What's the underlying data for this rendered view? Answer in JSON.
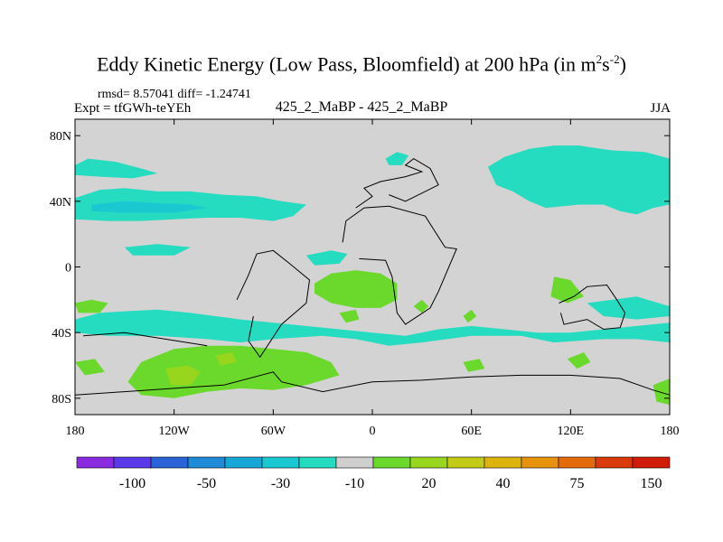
{
  "title": {
    "main": "Eddy Kinetic Energy (Low Pass, Bloomfield) at 200 hPa (in m",
    "sup1": "2",
    "mid": "s",
    "sup2": "-2",
    "end": ")"
  },
  "stats": "rmsd= 8.57041 diff= -1.24741",
  "expt": "Expt = tfGWh-teYEh",
  "center_label": "425_2_MaBP - 425_2_MaBP",
  "season": "JJA",
  "colors": {
    "background": "#d3d3d3",
    "coastline": "#000000",
    "palette": [
      "#8a2be2",
      "#5a3ae8",
      "#2a62d8",
      "#1e8ad8",
      "#18a8d8",
      "#1ac8d2",
      "#25dcc0",
      "#cfcfcf",
      "#6ad92c",
      "#98d61e",
      "#c2cc14",
      "#dcb40c",
      "#e6920a",
      "#e46a0a",
      "#d83a0a",
      "#d01a0a"
    ]
  },
  "chart_data": {
    "type": "heatmap",
    "title": "Eddy Kinetic Energy (Low Pass, Bloomfield) at 200 hPa (in m^2 s^-2)",
    "subtitle": "425_2_MaBP - 425_2_MaBP",
    "xlabel": "",
    "ylabel": "",
    "xlim": [
      -180,
      180
    ],
    "ylim": [
      -90,
      90
    ],
    "x_ticks": [
      {
        "value": -180,
        "label": "180"
      },
      {
        "value": -120,
        "label": "120W"
      },
      {
        "value": -60,
        "label": "60W"
      },
      {
        "value": 0,
        "label": "0"
      },
      {
        "value": 60,
        "label": "60E"
      },
      {
        "value": 120,
        "label": "120E"
      },
      {
        "value": 180,
        "label": "180"
      }
    ],
    "y_ticks": [
      {
        "value": 80,
        "label": "80N"
      },
      {
        "value": 40,
        "label": "40N"
      },
      {
        "value": 0,
        "label": "0"
      },
      {
        "value": -40,
        "label": "40S"
      },
      {
        "value": -80,
        "label": "80S"
      }
    ],
    "colorbar": {
      "levels": [
        -100,
        -50,
        -30,
        -10,
        20,
        40,
        75,
        150
      ],
      "labels": [
        "-100",
        "-50",
        "-30",
        "-10",
        "20",
        "40",
        "75",
        "150"
      ],
      "n_boxes": 16
    },
    "regions": [
      {
        "name": "nh-west-cyan-band",
        "class": "-10",
        "poly": [
          [
            -180,
            42
          ],
          [
            -165,
            47
          ],
          [
            -150,
            48
          ],
          [
            -130,
            46
          ],
          [
            -110,
            46
          ],
          [
            -90,
            44
          ],
          [
            -70,
            43
          ],
          [
            -55,
            40
          ],
          [
            -40,
            38
          ],
          [
            -48,
            31
          ],
          [
            -60,
            28
          ],
          [
            -80,
            30
          ],
          [
            -100,
            30
          ],
          [
            -120,
            29
          ],
          [
            -140,
            28
          ],
          [
            -160,
            28
          ],
          [
            -180,
            29
          ]
        ]
      },
      {
        "name": "nh-west-cyan-upper",
        "class": "-10",
        "poly": [
          [
            -180,
            62
          ],
          [
            -172,
            66
          ],
          [
            -155,
            64
          ],
          [
            -140,
            60
          ],
          [
            -130,
            57
          ],
          [
            -145,
            54
          ],
          [
            -165,
            55
          ],
          [
            -180,
            56
          ]
        ]
      },
      {
        "name": "nh-west-blue-core",
        "class": "-30",
        "poly": [
          [
            -170,
            38
          ],
          [
            -150,
            40
          ],
          [
            -130,
            39
          ],
          [
            -110,
            38
          ],
          [
            -100,
            36
          ],
          [
            -120,
            33
          ],
          [
            -150,
            33
          ],
          [
            -170,
            34
          ]
        ]
      },
      {
        "name": "nh-east-cyan",
        "class": "-10",
        "poly": [
          [
            70,
            61
          ],
          [
            80,
            67
          ],
          [
            95,
            72
          ],
          [
            110,
            74
          ],
          [
            125,
            74
          ],
          [
            145,
            71
          ],
          [
            165,
            70
          ],
          [
            180,
            66
          ],
          [
            180,
            38
          ],
          [
            170,
            36
          ],
          [
            160,
            32
          ],
          [
            150,
            34
          ],
          [
            140,
            38
          ],
          [
            125,
            38
          ],
          [
            105,
            36
          ],
          [
            95,
            40
          ],
          [
            85,
            46
          ],
          [
            75,
            50
          ]
        ]
      },
      {
        "name": "nh-east-cyan-small",
        "class": "-10",
        "poly": [
          [
            -40,
            7
          ],
          [
            -25,
            10
          ],
          [
            -15,
            8
          ],
          [
            -20,
            2
          ],
          [
            -35,
            1
          ]
        ]
      },
      {
        "name": "trop-cyan-west",
        "class": "-10",
        "poly": [
          [
            -150,
            12
          ],
          [
            -130,
            14
          ],
          [
            -110,
            12
          ],
          [
            -120,
            7
          ],
          [
            -145,
            7
          ]
        ]
      },
      {
        "name": "nh-cyan-africa",
        "class": "-10",
        "poly": [
          [
            8,
            66
          ],
          [
            15,
            70
          ],
          [
            22,
            68
          ],
          [
            18,
            62
          ],
          [
            10,
            62
          ]
        ]
      },
      {
        "name": "sa-green",
        "class": "20",
        "poly": [
          [
            -35,
            -10
          ],
          [
            -25,
            -4
          ],
          [
            -10,
            -2
          ],
          [
            5,
            -4
          ],
          [
            15,
            -10
          ],
          [
            15,
            -20
          ],
          [
            5,
            -25
          ],
          [
            -10,
            -25
          ],
          [
            -25,
            -22
          ],
          [
            -35,
            -16
          ]
        ]
      },
      {
        "name": "sa-green-2",
        "class": "20",
        "poly": [
          [
            25,
            -24
          ],
          [
            30,
            -20
          ],
          [
            34,
            -24
          ],
          [
            30,
            -28
          ]
        ]
      },
      {
        "name": "sw-pacific-green",
        "class": "20",
        "poly": [
          [
            -180,
            -22
          ],
          [
            -170,
            -20
          ],
          [
            -160,
            -22
          ],
          [
            -165,
            -28
          ],
          [
            -178,
            -28
          ]
        ]
      },
      {
        "name": "sh-band-cyan",
        "class": "-10",
        "poly": [
          [
            -180,
            -32
          ],
          [
            -165,
            -28
          ],
          [
            -150,
            -27
          ],
          [
            -130,
            -26
          ],
          [
            -110,
            -28
          ],
          [
            -95,
            -30
          ],
          [
            -80,
            -32
          ],
          [
            -60,
            -34
          ],
          [
            -40,
            -36
          ],
          [
            -20,
            -38
          ],
          [
            0,
            -40
          ],
          [
            20,
            -42
          ],
          [
            40,
            -38
          ],
          [
            60,
            -36
          ],
          [
            80,
            -38
          ],
          [
            100,
            -40
          ],
          [
            120,
            -40
          ],
          [
            140,
            -38
          ],
          [
            160,
            -36
          ],
          [
            180,
            -34
          ],
          [
            180,
            -46
          ],
          [
            160,
            -44
          ],
          [
            140,
            -44
          ],
          [
            110,
            -46
          ],
          [
            90,
            -42
          ],
          [
            60,
            -42
          ],
          [
            30,
            -46
          ],
          [
            10,
            -48
          ],
          [
            -10,
            -44
          ],
          [
            -30,
            -42
          ],
          [
            -60,
            -44
          ],
          [
            -80,
            -46
          ],
          [
            -100,
            -44
          ],
          [
            -130,
            -42
          ],
          [
            -160,
            -42
          ],
          [
            -180,
            -40
          ]
        ]
      },
      {
        "name": "sh-green-main",
        "class": "20",
        "poly": [
          [
            -140,
            -58
          ],
          [
            -120,
            -50
          ],
          [
            -100,
            -48
          ],
          [
            -80,
            -48
          ],
          [
            -60,
            -50
          ],
          [
            -40,
            -52
          ],
          [
            -25,
            -58
          ],
          [
            -20,
            -66
          ],
          [
            -40,
            -72
          ],
          [
            -60,
            -75
          ],
          [
            -80,
            -74
          ],
          [
            -100,
            -76
          ],
          [
            -120,
            -80
          ],
          [
            -140,
            -78
          ],
          [
            -148,
            -70
          ]
        ]
      },
      {
        "name": "sh-green-lime",
        "class": "40",
        "poly": [
          [
            -125,
            -62
          ],
          [
            -112,
            -60
          ],
          [
            -104,
            -64
          ],
          [
            -110,
            -72
          ],
          [
            -122,
            -72
          ]
        ]
      },
      {
        "name": "sh-green-lime-2",
        "class": "40",
        "poly": [
          [
            -95,
            -54
          ],
          [
            -85,
            -52
          ],
          [
            -82,
            -58
          ],
          [
            -92,
            -60
          ]
        ]
      },
      {
        "name": "india-green",
        "class": "20",
        "poly": [
          [
            110,
            -6
          ],
          [
            120,
            -8
          ],
          [
            128,
            -18
          ],
          [
            118,
            -22
          ],
          [
            108,
            -18
          ]
        ]
      },
      {
        "name": "indian-green-small",
        "class": "20",
        "poly": [
          [
            55,
            -30
          ],
          [
            60,
            -26
          ],
          [
            63,
            -30
          ],
          [
            58,
            -34
          ]
        ]
      },
      {
        "name": "aus-green",
        "class": "20",
        "poly": [
          [
            118,
            -56
          ],
          [
            128,
            -52
          ],
          [
            132,
            -58
          ],
          [
            124,
            -62
          ]
        ]
      },
      {
        "name": "aus-green-2",
        "class": "20",
        "poly": [
          [
            170,
            -72
          ],
          [
            180,
            -68
          ],
          [
            180,
            -84
          ],
          [
            172,
            -82
          ]
        ]
      },
      {
        "name": "sh-green-indian",
        "class": "20",
        "poly": [
          [
            -180,
            -58
          ],
          [
            -168,
            -56
          ],
          [
            -162,
            -64
          ],
          [
            -174,
            -66
          ]
        ]
      },
      {
        "name": "africa-green-south",
        "class": "20",
        "poly": [
          [
            55,
            -58
          ],
          [
            65,
            -56
          ],
          [
            68,
            -62
          ],
          [
            58,
            -64
          ]
        ]
      },
      {
        "name": "pacific-green-mid",
        "class": "20",
        "poly": [
          [
            -20,
            -28
          ],
          [
            -10,
            -26
          ],
          [
            -8,
            -32
          ],
          [
            -16,
            -34
          ]
        ]
      },
      {
        "name": "east-cyan-southern",
        "class": "-10",
        "poly": [
          [
            130,
            -22
          ],
          [
            160,
            -18
          ],
          [
            180,
            -24
          ],
          [
            180,
            -30
          ],
          [
            160,
            -32
          ],
          [
            140,
            -30
          ]
        ]
      }
    ]
  }
}
